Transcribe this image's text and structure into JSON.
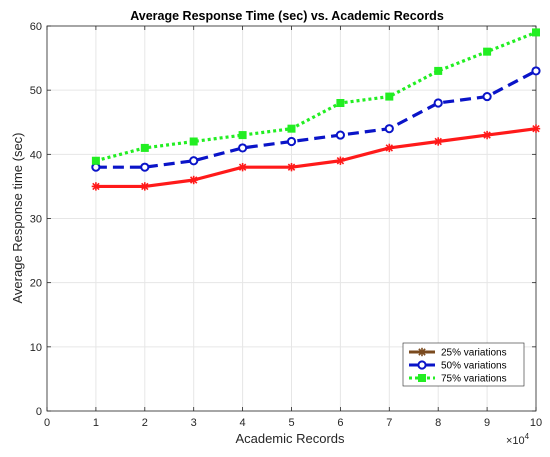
{
  "chart_data": {
    "type": "line",
    "title": "Average Response Time (sec) vs. Academic Records",
    "xlabel": "Academic Records",
    "ylabel": "Average Response time (sec)",
    "x_multiplier": "×10",
    "x_multiplier_exp": "4",
    "x": [
      1,
      2,
      3,
      4,
      5,
      6,
      7,
      8,
      9,
      10
    ],
    "xticks": [
      0,
      1,
      2,
      3,
      4,
      5,
      6,
      7,
      8,
      9,
      10
    ],
    "yticks": [
      0,
      10,
      20,
      30,
      40,
      50,
      60
    ],
    "xlim": [
      0,
      10
    ],
    "ylim": [
      0,
      60
    ],
    "grid": true,
    "legend_position": "bottom-right",
    "series": [
      {
        "name": "25% variations",
        "color": "#ff1a1a",
        "legend_color": "#7a4a1e",
        "dash": "solid",
        "marker": "asterisk",
        "values": [
          35,
          35,
          36,
          38,
          38,
          39,
          41,
          42,
          43,
          44
        ]
      },
      {
        "name": "50% variations",
        "color": "#0a14c8",
        "dash": "dashed",
        "marker": "circle",
        "values": [
          38,
          38,
          39,
          41,
          42,
          43,
          44,
          48,
          49,
          53
        ]
      },
      {
        "name": "75% variations",
        "color": "#22ee22",
        "dash": "dotted",
        "marker": "square",
        "values": [
          39,
          41,
          42,
          43,
          44,
          48,
          49,
          53,
          56,
          59
        ]
      }
    ]
  }
}
